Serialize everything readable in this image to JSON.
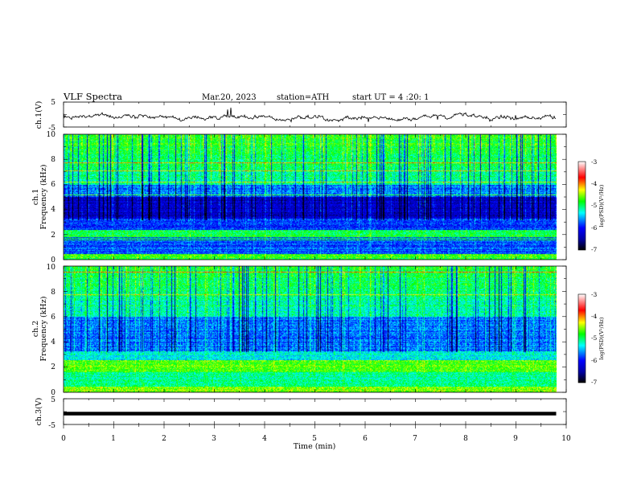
{
  "header": {
    "title": "VLF  Spectra",
    "date": "Mar.20, 2023",
    "station": "station=ATH",
    "start": "start  UT  =   4  :20: 1"
  },
  "chart_data": [
    {
      "type": "line",
      "name": "ch1-waveform",
      "ylabel": "ch.1(V)",
      "ylim": [
        -5,
        5
      ],
      "yticks": [
        "5",
        "-5"
      ],
      "xlim": [
        0,
        10
      ],
      "x_end": 9.8,
      "color": "#000000"
    },
    {
      "type": "heatmap",
      "name": "ch1-spectrogram",
      "ylabel_lines": [
        "ch.1",
        "Frequency (kHz)"
      ],
      "ylim": [
        0,
        10
      ],
      "yticks": [
        "0",
        "2",
        "4",
        "6",
        "8",
        "10"
      ],
      "xlim": [
        0,
        10
      ],
      "x_end": 9.8,
      "colorbar": {
        "label": "log(PSD)(V²/Hz)",
        "range": [
          -7,
          -3
        ],
        "ticks": [
          "-3",
          "-4",
          "-5",
          "-6",
          "-7"
        ]
      }
    },
    {
      "type": "heatmap",
      "name": "ch2-spectrogram",
      "ylabel_lines": [
        "ch.2",
        "Frequency (kHz)"
      ],
      "ylim": [
        0,
        10
      ],
      "yticks": [
        "0",
        "2",
        "4",
        "6",
        "8",
        "10"
      ],
      "xlim": [
        0,
        10
      ],
      "x_end": 9.8,
      "colorbar": {
        "label": "log(PSD)(V²/Hz)",
        "range": [
          -7,
          -3
        ],
        "ticks": [
          "-3",
          "-4",
          "-5",
          "-6",
          "-7"
        ]
      }
    },
    {
      "type": "line",
      "name": "ch3-waveform",
      "ylabel": "ch.3(V)",
      "ylim": [
        -5,
        5
      ],
      "yticks": [
        "5",
        "-5"
      ],
      "xlim": [
        0,
        10
      ],
      "x_end": 9.8,
      "color": "#000000"
    }
  ],
  "xaxis": {
    "label": "Time  (min)",
    "ticks": [
      "0",
      "1",
      "2",
      "3",
      "4",
      "5",
      "6",
      "7",
      "8",
      "9",
      "10"
    ]
  },
  "colors": {
    "background": "#ffffff",
    "colormap": [
      "#000000",
      "#0000ff",
      "#00ffff",
      "#00ff00",
      "#ffff00",
      "#ff0000",
      "#ffffff"
    ]
  }
}
